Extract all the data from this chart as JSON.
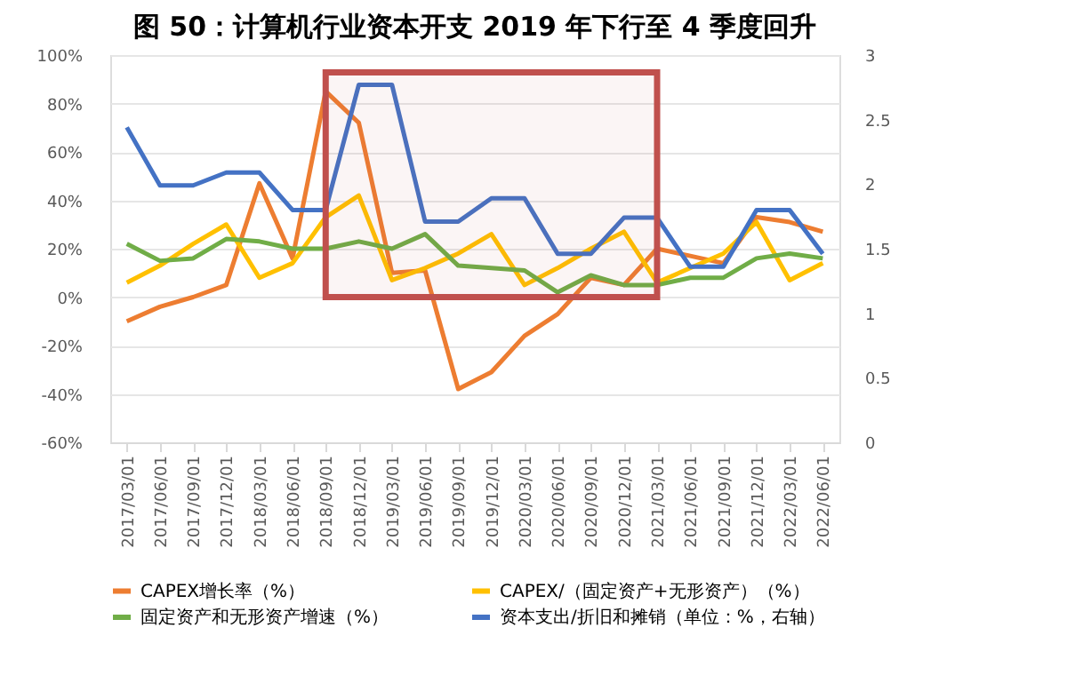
{
  "chart_data": {
    "type": "line",
    "title": "图 50：计算机行业资本开支 2019 年下行至 4 季度回升",
    "categories": [
      "2017/03/01",
      "2017/06/01",
      "2017/09/01",
      "2017/12/01",
      "2018/03/01",
      "2018/06/01",
      "2018/09/01",
      "2018/12/01",
      "2019/03/01",
      "2019/06/01",
      "2019/09/01",
      "2019/12/01",
      "2020/03/01",
      "2020/06/01",
      "2020/09/01",
      "2020/12/01",
      "2021/03/01",
      "2021/06/01",
      "2021/09/01",
      "2021/12/01",
      "2022/03/01",
      "2022/06/01"
    ],
    "series": [
      {
        "name": "CAPEX增长率（%）",
        "color": "#ed7d31",
        "values": [
          -10,
          -4,
          0,
          5,
          47,
          16,
          85,
          72,
          10,
          11,
          -38,
          -31,
          -16,
          -7,
          8,
          5,
          20,
          17,
          14,
          33,
          31,
          27
        ]
      },
      {
        "name": "CAPEX/（固定资产+无形资产）（%）",
        "color": "#ffc000",
        "values": [
          6,
          13,
          22,
          30,
          8,
          14,
          33,
          42,
          7,
          12,
          18,
          26,
          5,
          12,
          20,
          27,
          6,
          12,
          18,
          31,
          7,
          14
        ]
      },
      {
        "name": "固定资产和无形资产增速（%）",
        "color": "#70ad47",
        "values": [
          22,
          15,
          16,
          24,
          23,
          20,
          20,
          23,
          20,
          26,
          13,
          12,
          11,
          2,
          9,
          5,
          5,
          8,
          8,
          16,
          18,
          16
        ]
      },
      {
        "name": "资本支出/折旧和摊销（单位：%，右轴）",
        "color": "#4472c4",
        "axis": "y2",
        "values": [
          2.44,
          1.99,
          1.99,
          2.09,
          2.09,
          1.8,
          1.8,
          2.77,
          2.77,
          1.71,
          1.71,
          1.89,
          1.89,
          1.46,
          1.46,
          1.74,
          1.74,
          1.36,
          1.36,
          1.8,
          1.8,
          1.46
        ]
      }
    ],
    "ylim": [
      -60,
      100
    ],
    "yticks": [
      {
        "value": -60,
        "label": "-60%"
      },
      {
        "value": -40,
        "label": "-40%"
      },
      {
        "value": -20,
        "label": "-20%"
      },
      {
        "value": 0,
        "label": "0%"
      },
      {
        "value": 20,
        "label": "20%"
      },
      {
        "value": 40,
        "label": "40%"
      },
      {
        "value": 60,
        "label": "60%"
      },
      {
        "value": 80,
        "label": "80%"
      },
      {
        "value": 100,
        "label": "100%"
      }
    ],
    "y2lim": [
      0,
      3
    ],
    "y2ticks": [
      0,
      0.5,
      1,
      1.5,
      2,
      2.5,
      3
    ],
    "bands": [
      {
        "axis": "x",
        "from": "2018/09/01",
        "to": "2021/03/01",
        "color": "#c0504d"
      }
    ],
    "grid": "y",
    "legend": "bottom",
    "marker": "none",
    "line_style": "solid"
  }
}
